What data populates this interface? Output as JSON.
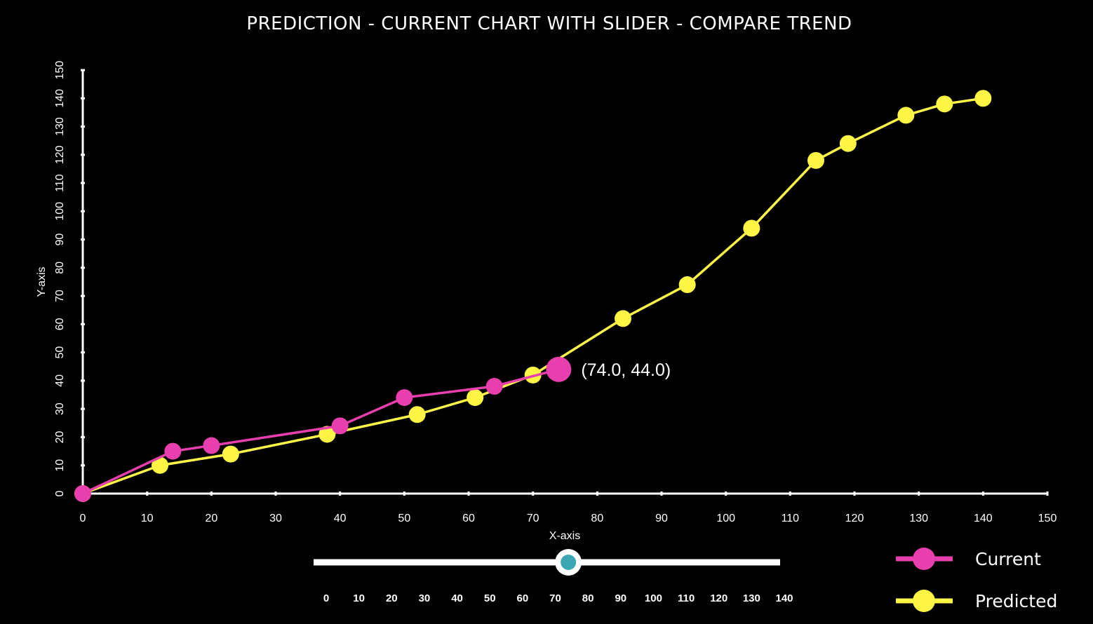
{
  "title": "PREDICTION - CURRENT CHART WITH SLIDER - COMPARE TREND",
  "chart_data": {
    "type": "line",
    "title": "PREDICTION - CURRENT CHART WITH SLIDER - COMPARE TREND",
    "xlabel": "X-axis",
    "ylabel": "Y-axis",
    "xlim": [
      0,
      150
    ],
    "ylim": [
      0,
      150
    ],
    "x_ticks": [
      "0",
      "10",
      "20",
      "30",
      "40",
      "50",
      "60",
      "70",
      "80",
      "90",
      "100",
      "110",
      "120",
      "130",
      "140",
      "150"
    ],
    "y_ticks": [
      "0",
      "10",
      "20",
      "30",
      "40",
      "50",
      "60",
      "70",
      "80",
      "90",
      "100",
      "110",
      "120",
      "130",
      "140",
      "150"
    ],
    "grid": false,
    "legend_position": "bottom-right",
    "series": [
      {
        "name": "Current",
        "color": "#e83fae",
        "points": [
          [
            0,
            0
          ],
          [
            14,
            15
          ],
          [
            20,
            17
          ],
          [
            40,
            24
          ],
          [
            50,
            34
          ],
          [
            64,
            38
          ],
          [
            74,
            44
          ]
        ]
      },
      {
        "name": "Predicted",
        "color": "#fef544",
        "points": [
          [
            0,
            0
          ],
          [
            12,
            10
          ],
          [
            23,
            14
          ],
          [
            38,
            21
          ],
          [
            52,
            28
          ],
          [
            61,
            34
          ],
          [
            70,
            42
          ],
          [
            84,
            62
          ],
          [
            94,
            74
          ],
          [
            104,
            94
          ],
          [
            114,
            118
          ],
          [
            119,
            124
          ],
          [
            128,
            134
          ],
          [
            134,
            138
          ],
          [
            140,
            140
          ]
        ]
      }
    ],
    "highlight": {
      "series": "Current",
      "x": 74,
      "y": 44,
      "label": "(74.0, 44.0)"
    }
  },
  "slider": {
    "min": 0,
    "max": 140,
    "value": 74,
    "tick_labels": [
      "0",
      "10",
      "20",
      "30",
      "40",
      "50",
      "60",
      "70",
      "80",
      "90",
      "100",
      "110",
      "120",
      "130",
      "140"
    ],
    "track_color": "#ffffff",
    "thumb_color": "#3ba7b4"
  },
  "legend": [
    {
      "label": "Current",
      "color": "#e83fae"
    },
    {
      "label": "Predicted",
      "color": "#fef544"
    }
  ]
}
